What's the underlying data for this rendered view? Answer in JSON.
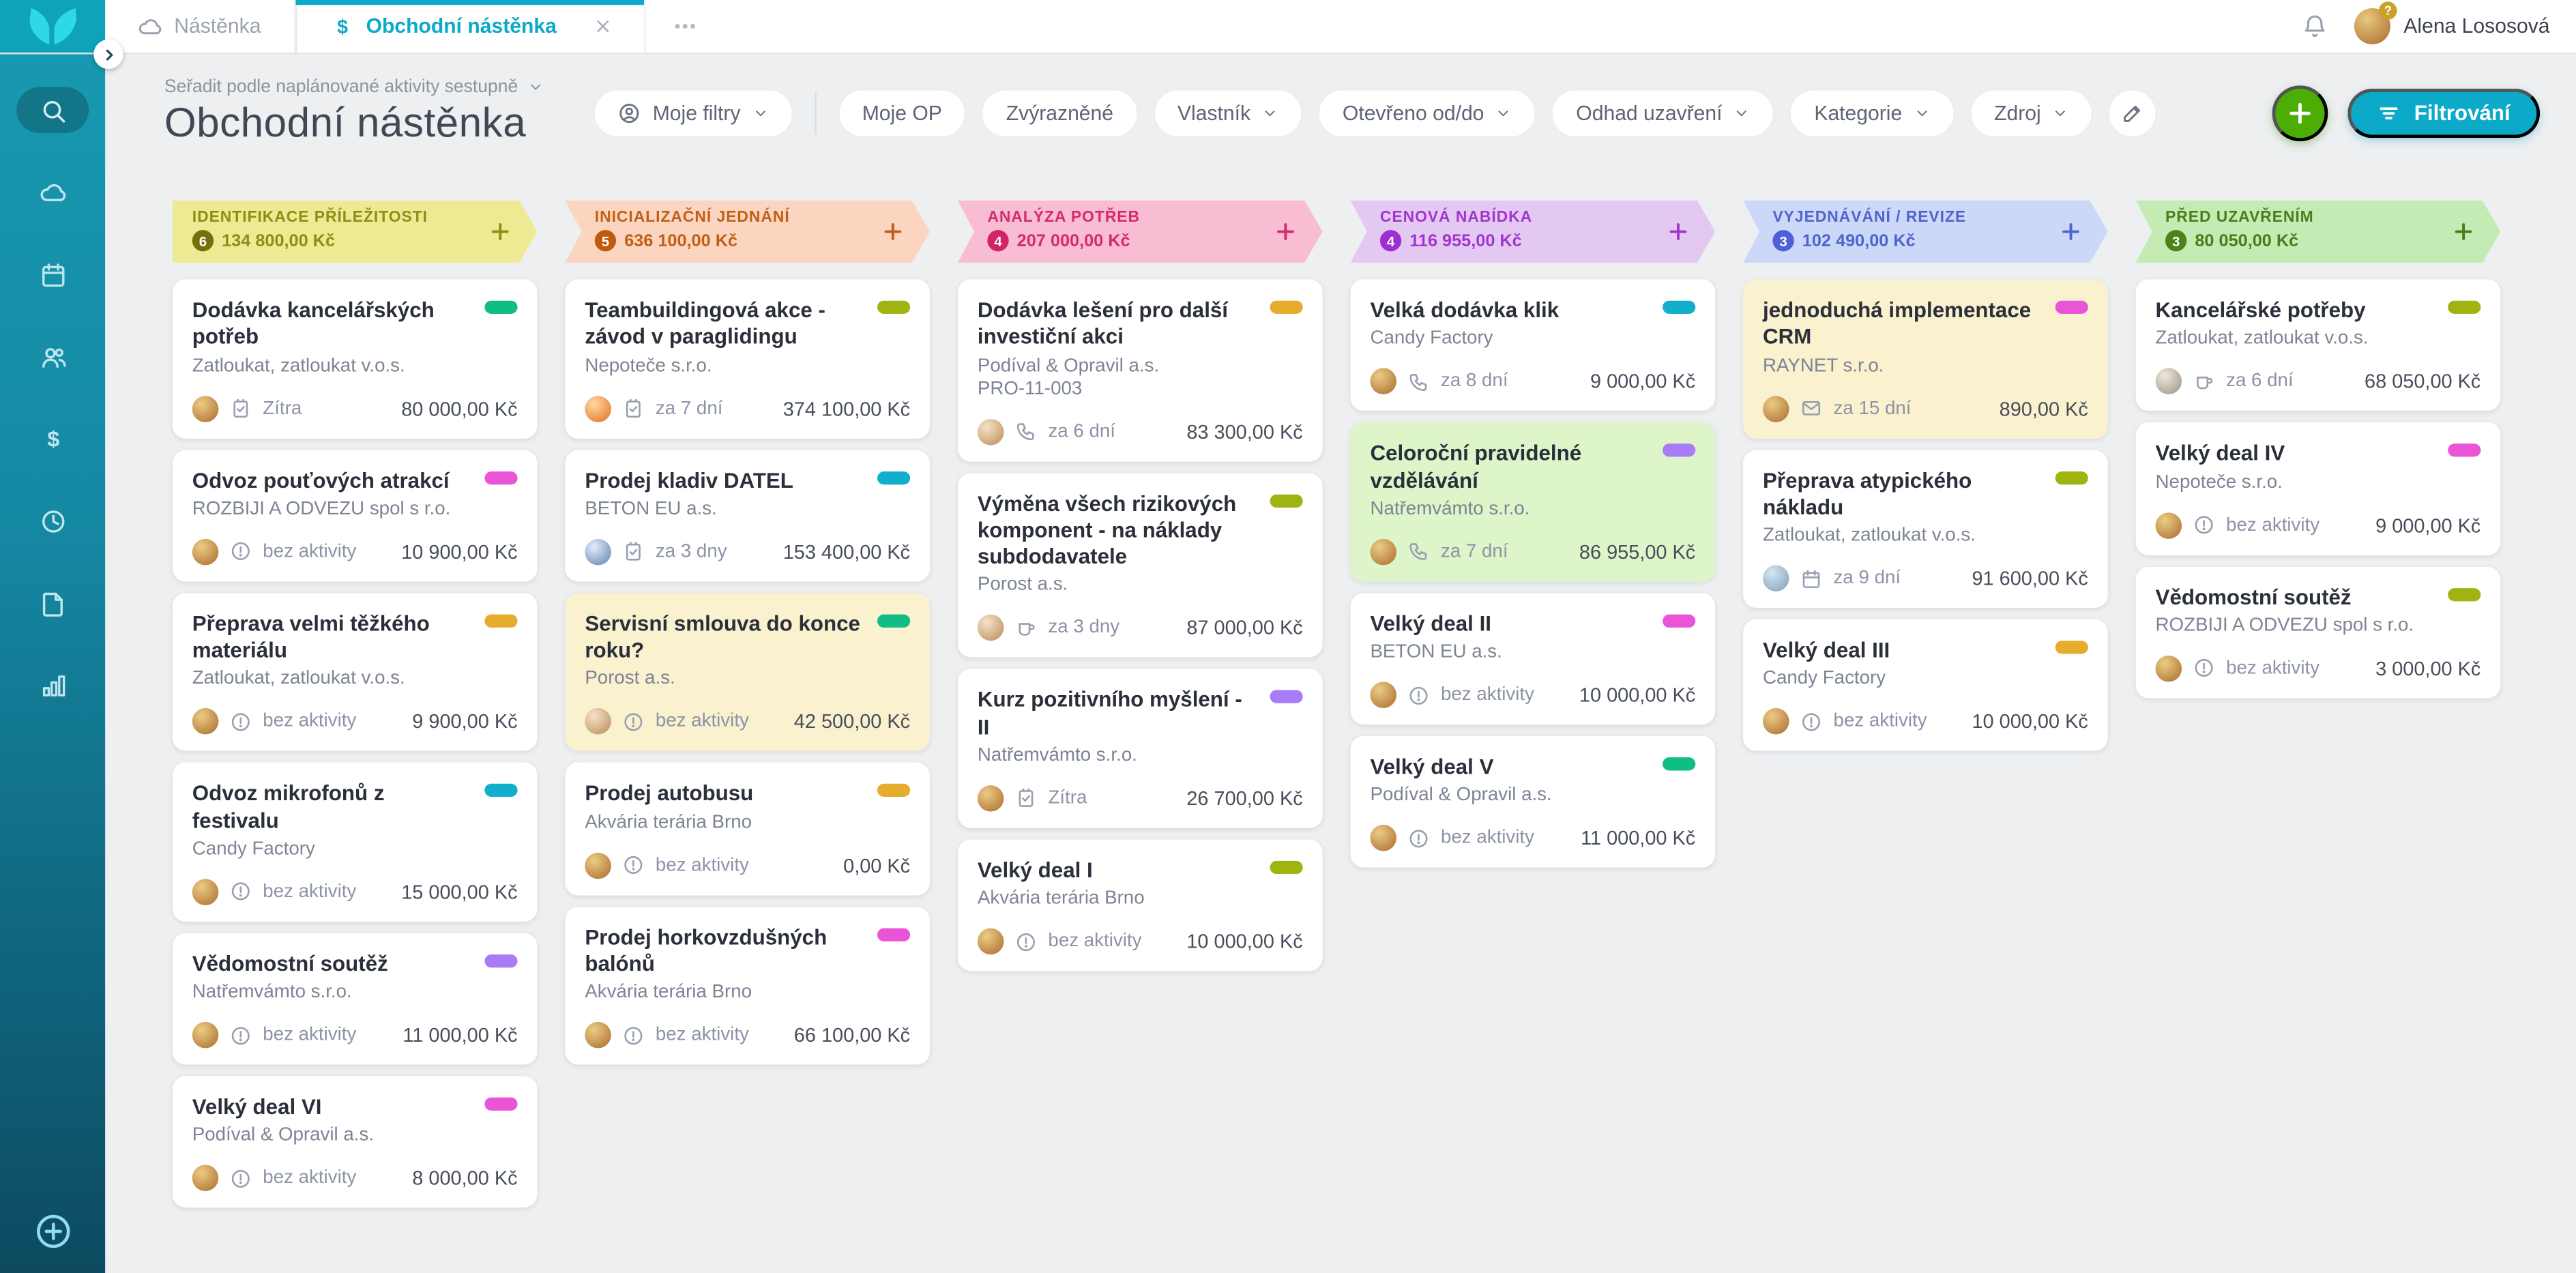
{
  "topbar": {
    "tabs": [
      {
        "label": "Nástěnka",
        "icon": "cloud",
        "active": false,
        "closable": false
      },
      {
        "label": "Obchodní nástěnka",
        "icon": "dollar",
        "active": true,
        "closable": true
      }
    ],
    "more_tabs_icon": "ellipsis",
    "notifications_icon": "bell",
    "user": {
      "name": "Alena Lososová",
      "badge": "?"
    }
  },
  "sidebar": {
    "items": [
      {
        "name": "search",
        "icon": "search",
        "active": true
      },
      {
        "name": "cloud",
        "icon": "cloud",
        "active": false
      },
      {
        "name": "calendar",
        "icon": "calendar",
        "active": false
      },
      {
        "name": "contacts",
        "icon": "people",
        "active": false
      },
      {
        "name": "deals",
        "icon": "dollar",
        "active": false
      },
      {
        "name": "history",
        "icon": "clock",
        "active": false
      },
      {
        "name": "documents",
        "icon": "document",
        "active": false
      },
      {
        "name": "reports",
        "icon": "chart",
        "active": false
      }
    ],
    "bottom": {
      "name": "add",
      "icon": "plus-circle"
    }
  },
  "toolbar": {
    "sort_label": "Seřadit podle naplánované aktivity sestupně",
    "title": "Obchodní nástěnka",
    "my_filters": {
      "label": "Moje filtry",
      "icon": "person-circle"
    },
    "filters": [
      {
        "label": "Moje OP",
        "chevron": false
      },
      {
        "label": "Zvýrazněné",
        "chevron": false
      },
      {
        "label": "Vlastník",
        "chevron": true
      },
      {
        "label": "Otevřeno od/do",
        "chevron": true
      },
      {
        "label": "Odhad uzavření",
        "chevron": true
      },
      {
        "label": "Kategorie",
        "chevron": true
      },
      {
        "label": "Zdroj",
        "chevron": true
      }
    ],
    "edit_icon": "pencil",
    "add_button_icon": "plus",
    "filter_button": {
      "label": "Filtrování",
      "icon": "filter-lines"
    }
  },
  "colors": {
    "accent_teal": "#0ca9c9",
    "accent_green": "#4cae04",
    "tag_green": "#0fbd85",
    "tag_pink": "#ea55d7",
    "tag_amber": "#e5ad2b",
    "tag_cyan": "#12afcd",
    "tag_purple": "#a87cf6",
    "tag_olive": "#9fb311",
    "highlight_yellow": "#faf1cf",
    "highlight_green": "#def5c9"
  },
  "board": {
    "columns": [
      {
        "title": "IDENTIFIKACE PŘÍLEŽITOSTI",
        "count": "6",
        "sum": "134 800,00 Kč",
        "theme": {
          "bg": "#edea93",
          "text": "#8f8d15",
          "badge": "#72700a"
        },
        "cards": [
          {
            "title": "Dodávka kancelářských potřeb",
            "company": "Zatloukat, zatloukat v.o.s.",
            "activity_icon": "task",
            "activity": "Zítra",
            "amount": "80 000,00 Kč",
            "tag": "#0fbd85",
            "highlight": "",
            "avatar": "gold"
          },
          {
            "title": "Odvoz pouťových atrakcí",
            "company": "ROZBIJI A ODVEZU spol s r.o.",
            "activity_icon": "alert",
            "activity": "bez aktivity",
            "amount": "10 900,00 Kč",
            "tag": "#ea55d7",
            "highlight": "",
            "avatar": "gold"
          },
          {
            "title": "Přeprava velmi těžkého materiálu",
            "company": "Zatloukat, zatloukat v.o.s.",
            "activity_icon": "alert",
            "activity": "bez aktivity",
            "amount": "9 900,00 Kč",
            "tag": "#e5ad2b",
            "highlight": "",
            "avatar": "gold"
          },
          {
            "title": "Odvoz mikrofonů z festivalu",
            "company": "Candy Factory",
            "activity_icon": "alert",
            "activity": "bez aktivity",
            "amount": "15 000,00 Kč",
            "tag": "#12afcd",
            "highlight": "",
            "avatar": "gold"
          },
          {
            "title": "Vědomostní soutěž",
            "company": "Natřemvámto s.r.o.",
            "activity_icon": "alert",
            "activity": "bez aktivity",
            "amount": "11 000,00 Kč",
            "tag": "#a87cf6",
            "highlight": "",
            "avatar": "gold"
          },
          {
            "title": "Velký deal VI",
            "company": "Podíval & Opravil a.s.",
            "activity_icon": "alert",
            "activity": "bez aktivity",
            "amount": "8 000,00 Kč",
            "tag": "#ea55d7",
            "highlight": "",
            "avatar": "gold"
          }
        ]
      },
      {
        "title": "INICIALIZAČNÍ JEDNÁNÍ",
        "count": "5",
        "sum": "636 100,00 Kč",
        "theme": {
          "bg": "#fbd5bf",
          "text": "#c06018",
          "badge": "#c05a0e"
        },
        "cards": [
          {
            "title": "Teambuildingová akce - závod v paraglidingu",
            "company": "Nepoteče s.r.o.",
            "activity_icon": "task",
            "activity": "za 7 dní",
            "amount": "374 100,00 Kč",
            "tag": "#9fb311",
            "highlight": "",
            "avatar": "orange"
          },
          {
            "title": "Prodej kladiv DATEL",
            "company": "BETON EU a.s.",
            "activity_icon": "task",
            "activity": "za 3 dny",
            "amount": "153 400,00 Kč",
            "tag": "#12afcd",
            "highlight": "",
            "avatar": "blue"
          },
          {
            "title": "Servisní smlouva do konce roku?",
            "company": "Porost a.s.",
            "activity_icon": "alert",
            "activity": "bez aktivity",
            "amount": "42 500,00 Kč",
            "tag": "#0fbd85",
            "highlight": "yellow",
            "avatar": "blond"
          },
          {
            "title": "Prodej autobusu",
            "company": "Akvária terária Brno",
            "activity_icon": "alert",
            "activity": "bez aktivity",
            "amount": "0,00 Kč",
            "tag": "#e5ad2b",
            "highlight": "",
            "avatar": "gold"
          },
          {
            "title": "Prodej horkovzdušných balónů",
            "company": "Akvária terária Brno",
            "activity_icon": "alert",
            "activity": "bez aktivity",
            "amount": "66 100,00 Kč",
            "tag": "#ea55d7",
            "highlight": "",
            "avatar": "gold"
          }
        ]
      },
      {
        "title": "ANALÝZA POTŘEB",
        "count": "4",
        "sum": "207 000,00 Kč",
        "theme": {
          "bg": "#f8bdd3",
          "text": "#d52a70",
          "badge": "#d02368"
        },
        "cards": [
          {
            "title": "Dodávka lešení pro další investiční akci",
            "company": "Podíval & Opravil a.s.",
            "code": "PRO-11-003",
            "activity_icon": "phone",
            "activity": "za 6 dní",
            "amount": "83 300,00 Kč",
            "tag": "#e5ad2b",
            "highlight": "",
            "avatar": "blond"
          },
          {
            "title": "Výměna všech rizikových komponent - na náklady subdodavatele",
            "company": "Porost a.s.",
            "activity_icon": "cup",
            "activity": "za 3 dny",
            "amount": "87 000,00 Kč",
            "tag": "#9fb311",
            "highlight": "",
            "avatar": "blond"
          },
          {
            "title": "Kurz pozitivního myšlení - II",
            "company": "Natřemvámto s.r.o.",
            "activity_icon": "task",
            "activity": "Zítra",
            "amount": "26 700,00 Kč",
            "tag": "#a87cf6",
            "highlight": "",
            "avatar": "gold"
          },
          {
            "title": "Velký deal I",
            "company": "Akvária terária Brno",
            "activity_icon": "alert",
            "activity": "bez aktivity",
            "amount": "10 000,00 Kč",
            "tag": "#9fb311",
            "highlight": "",
            "avatar": "gold"
          }
        ]
      },
      {
        "title": "CENOVÁ NABÍDKA",
        "count": "4",
        "sum": "116 955,00 Kč",
        "theme": {
          "bg": "#e3c9f1",
          "text": "#a136ce",
          "badge": "#9d2fd1"
        },
        "cards": [
          {
            "title": "Velká dodávka klik",
            "company": "Candy Factory",
            "activity_icon": "phone",
            "activity": "za 8 dní",
            "amount": "9 000,00 Kč",
            "tag": "#12afcd",
            "highlight": "",
            "avatar": "gold"
          },
          {
            "title": "Celoroční pravidelné vzdělávání",
            "company": "Natřemvámto s.r.o.",
            "activity_icon": "phone",
            "activity": "za 7 dní",
            "amount": "86 955,00 Kč",
            "tag": "#a87cf6",
            "highlight": "green",
            "avatar": "gold"
          },
          {
            "title": "Velký deal II",
            "company": "BETON EU a.s.",
            "activity_icon": "alert",
            "activity": "bez aktivity",
            "amount": "10 000,00 Kč",
            "tag": "#ea55d7",
            "highlight": "",
            "avatar": "gold"
          },
          {
            "title": "Velký deal V",
            "company": "Podíval & Opravil a.s.",
            "activity_icon": "alert",
            "activity": "bez aktivity",
            "amount": "11 000,00 Kč",
            "tag": "#0fbd85",
            "highlight": "",
            "avatar": "gold"
          }
        ]
      },
      {
        "title": "VYJEDNÁVÁNÍ / REVIZE",
        "count": "3",
        "sum": "102 490,00 Kč",
        "theme": {
          "bg": "#cbd8f7",
          "text": "#5064cf",
          "badge": "#4d60d8"
        },
        "cards": [
          {
            "title": "jednoduchá implementace CRM",
            "company": "RAYNET s.r.o.",
            "activity_icon": "mail",
            "activity": "za 15 dní",
            "amount": "890,00 Kč",
            "tag": "#ea55d7",
            "highlight": "yellow",
            "avatar": "gold"
          },
          {
            "title": "Přeprava atypického nákladu",
            "company": "Zatloukat, zatloukat v.o.s.",
            "activity_icon": "calendar",
            "activity": "za 9 dní",
            "amount": "91 600,00 Kč",
            "tag": "#9fb311",
            "highlight": "",
            "avatar": "shades"
          },
          {
            "title": "Velký deal III",
            "company": "Candy Factory",
            "activity_icon": "alert",
            "activity": "bez aktivity",
            "amount": "10 000,00 Kč",
            "tag": "#e5ad2b",
            "highlight": "",
            "avatar": "gold"
          }
        ]
      },
      {
        "title": "PŘED UZAVŘENÍM",
        "count": "3",
        "sum": "80 050,00 Kč",
        "theme": {
          "bg": "#c5ebb5",
          "text": "#4a7e1b",
          "badge": "#4c8318"
        },
        "cards": [
          {
            "title": "Kancelářské potřeby",
            "company": "Zatloukat, zatloukat v.o.s.",
            "activity_icon": "cup",
            "activity": "za 6 dní",
            "amount": "68 050,00 Kč",
            "tag": "#9fb311",
            "highlight": "",
            "avatar": "pale"
          },
          {
            "title": "Velký deal IV",
            "company": "Nepoteče s.r.o.",
            "activity_icon": "alert",
            "activity": "bez aktivity",
            "amount": "9 000,00 Kč",
            "tag": "#ea55d7",
            "highlight": "",
            "avatar": "gold"
          },
          {
            "title": "Vědomostní soutěž",
            "company": "ROZBIJI A ODVEZU spol s r.o.",
            "activity_icon": "alert",
            "activity": "bez aktivity",
            "amount": "3 000,00 Kč",
            "tag": "#9fb311",
            "highlight": "",
            "avatar": "gold"
          }
        ]
      }
    ]
  }
}
